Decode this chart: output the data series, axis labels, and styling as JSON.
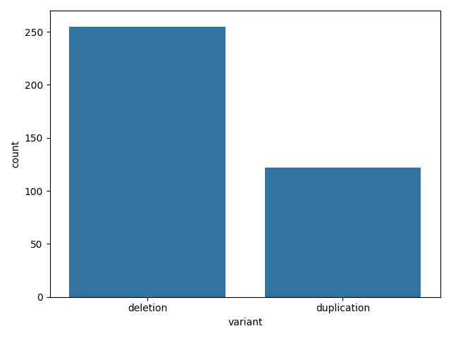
{
  "categories": [
    "deletion",
    "duplication"
  ],
  "values": [
    255,
    122
  ],
  "bar_color": "#1f77b4",
  "title": "",
  "xlabel": "variant",
  "ylabel": "count",
  "ylim": [
    0,
    270
  ],
  "bar_width": 0.4,
  "background_color": "#ffffff"
}
